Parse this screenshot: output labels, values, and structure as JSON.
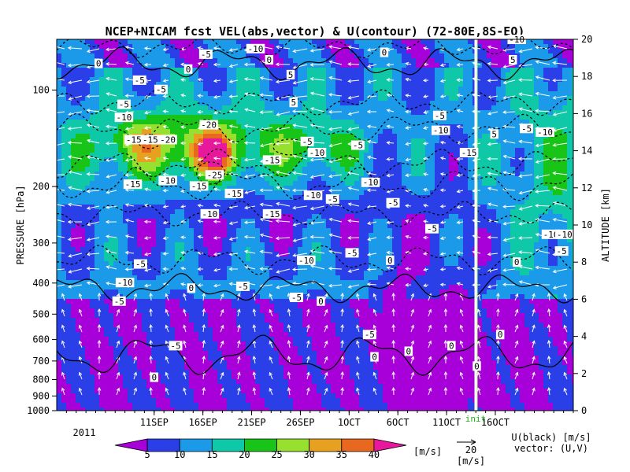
{
  "chart_data": {
    "type": "heatmap",
    "title": "NCEP+NICAM  fcst  VEL(abs,vector)  &  U(contour)   (72-80E,8S-EQ)",
    "ylabel_left": "PRESSURE  [hPa]",
    "ylabel_right": "ALTITUDE  [km]",
    "x_ticks": [
      "11SEP",
      "16SEP",
      "21SEP",
      "26SEP",
      "1OCT",
      "6OCT",
      "11OCT",
      "16OCT"
    ],
    "x_year": "2011",
    "y_pressure_ticks": [
      "100",
      "200",
      "300",
      "400",
      "500",
      "600",
      "700",
      "800",
      "900",
      "1000"
    ],
    "y_altitude_ticks": [
      "0",
      "2",
      "4",
      "6",
      "8",
      "10",
      "12",
      "14",
      "16",
      "18",
      "20"
    ],
    "init_label": "init",
    "colorbar": {
      "levels": [
        "5",
        "10",
        "15",
        "20",
        "25",
        "30",
        "35",
        "40"
      ],
      "unit": "[m/s]",
      "colors": [
        "#a800d8",
        "#2a3fe8",
        "#1a9ae8",
        "#0fc8a8",
        "#18c418",
        "#98e030",
        "#e8a020",
        "#e86820",
        "#e8189c"
      ]
    },
    "vector_reference": {
      "value": "20",
      "unit": "[m/s]"
    },
    "legend_lines": [
      "U(black) [m/s]",
      "vector: (U,V)"
    ],
    "contour_labels": [
      {
        "t": 35.3,
        "h": 18.7,
        "text": "0"
      },
      {
        "t": 39.5,
        "h": 17.8,
        "text": "-5"
      },
      {
        "t": 44.5,
        "h": 18.4,
        "text": "0"
      },
      {
        "t": 41.7,
        "h": 17.3,
        "text": "-5"
      },
      {
        "t": 51.4,
        "h": 19.5,
        "text": "-10"
      },
      {
        "t": 46.3,
        "h": 19.2,
        "text": "-5"
      },
      {
        "t": 52.8,
        "h": 18.9,
        "text": "0"
      },
      {
        "t": 55.0,
        "h": 18.1,
        "text": "5"
      },
      {
        "t": 64.6,
        "h": 19.3,
        "text": "0"
      },
      {
        "t": 37.9,
        "h": 16.5,
        "text": "-5"
      },
      {
        "t": 37.9,
        "h": 15.8,
        "text": "-10"
      },
      {
        "t": 55.3,
        "h": 16.6,
        "text": "5"
      },
      {
        "t": 70.3,
        "h": 15.9,
        "text": "-5"
      },
      {
        "t": 70.4,
        "h": 15.1,
        "text": "-10"
      },
      {
        "t": 38.9,
        "h": 14.6,
        "text": "-15"
      },
      {
        "t": 42.4,
        "h": 14.6,
        "text": "-20"
      },
      {
        "t": 40.6,
        "h": 14.6,
        "text": "-15"
      },
      {
        "t": 46.6,
        "h": 15.4,
        "text": "-20"
      },
      {
        "t": 56.7,
        "h": 14.5,
        "text": "-5"
      },
      {
        "t": 61.9,
        "h": 14.3,
        "text": "-5"
      },
      {
        "t": 57.7,
        "h": 13.9,
        "text": "-10"
      },
      {
        "t": 73.3,
        "h": 13.9,
        "text": "-15"
      },
      {
        "t": 53.1,
        "h": 13.5,
        "text": "-15"
      },
      {
        "t": 47.2,
        "h": 12.7,
        "text": "-25"
      },
      {
        "t": 42.4,
        "h": 12.4,
        "text": "-10"
      },
      {
        "t": 38.8,
        "h": 12.2,
        "text": "-15"
      },
      {
        "t": 45.6,
        "h": 12.1,
        "text": "-15"
      },
      {
        "t": 63.2,
        "h": 12.3,
        "text": "-10"
      },
      {
        "t": 49.2,
        "h": 11.7,
        "text": "-15"
      },
      {
        "t": 57.3,
        "h": 11.6,
        "text": "-10"
      },
      {
        "t": 59.3,
        "h": 11.4,
        "text": "-5"
      },
      {
        "t": 65.5,
        "h": 11.2,
        "text": "-5"
      },
      {
        "t": 46.7,
        "h": 10.6,
        "text": "-10"
      },
      {
        "t": 53.1,
        "h": 10.6,
        "text": "-15"
      },
      {
        "t": 69.5,
        "h": 9.8,
        "text": "-5"
      },
      {
        "t": 61.3,
        "h": 8.5,
        "text": "-5"
      },
      {
        "t": 56.6,
        "h": 8.1,
        "text": "-10"
      },
      {
        "t": 65.2,
        "h": 8.1,
        "text": "0"
      },
      {
        "t": 39.6,
        "h": 7.9,
        "text": "-5"
      },
      {
        "t": 38.0,
        "h": 6.9,
        "text": "-10"
      },
      {
        "t": 44.8,
        "h": 6.6,
        "text": "0"
      },
      {
        "t": 50.1,
        "h": 6.7,
        "text": "-5"
      },
      {
        "t": 37.4,
        "h": 5.9,
        "text": "-5"
      },
      {
        "t": 55.6,
        "h": 6.1,
        "text": "-5"
      },
      {
        "t": 58.1,
        "h": 5.9,
        "text": "0"
      },
      {
        "t": 63.1,
        "h": 4.1,
        "text": "-5"
      },
      {
        "t": 43.2,
        "h": 3.5,
        "text": "-5"
      },
      {
        "t": 63.6,
        "h": 2.9,
        "text": "0"
      },
      {
        "t": 71.5,
        "h": 3.5,
        "text": "0"
      },
      {
        "t": 67.1,
        "h": 3.2,
        "text": "0"
      },
      {
        "t": 76.5,
        "h": 4.1,
        "text": "0"
      },
      {
        "t": 74.1,
        "h": 2.4,
        "text": "0"
      },
      {
        "t": 41.0,
        "h": 1.8,
        "text": "0"
      },
      {
        "t": 75.9,
        "h": 14.9,
        "text": "5"
      },
      {
        "t": 77.8,
        "h": 18.9,
        "text": "5"
      },
      {
        "t": 79.2,
        "h": 15.2,
        "text": "-5"
      },
      {
        "t": 81.1,
        "h": 15.0,
        "text": "-10"
      },
      {
        "t": 81.7,
        "h": 9.5,
        "text": "-10"
      },
      {
        "t": 83.1,
        "h": 9.5,
        "text": "-10"
      },
      {
        "t": 82.8,
        "h": 8.6,
        "text": "-5"
      },
      {
        "t": 78.2,
        "h": 20.0,
        "text": "-10"
      },
      {
        "t": 78.2,
        "h": 8.0,
        "text": "0"
      }
    ]
  }
}
